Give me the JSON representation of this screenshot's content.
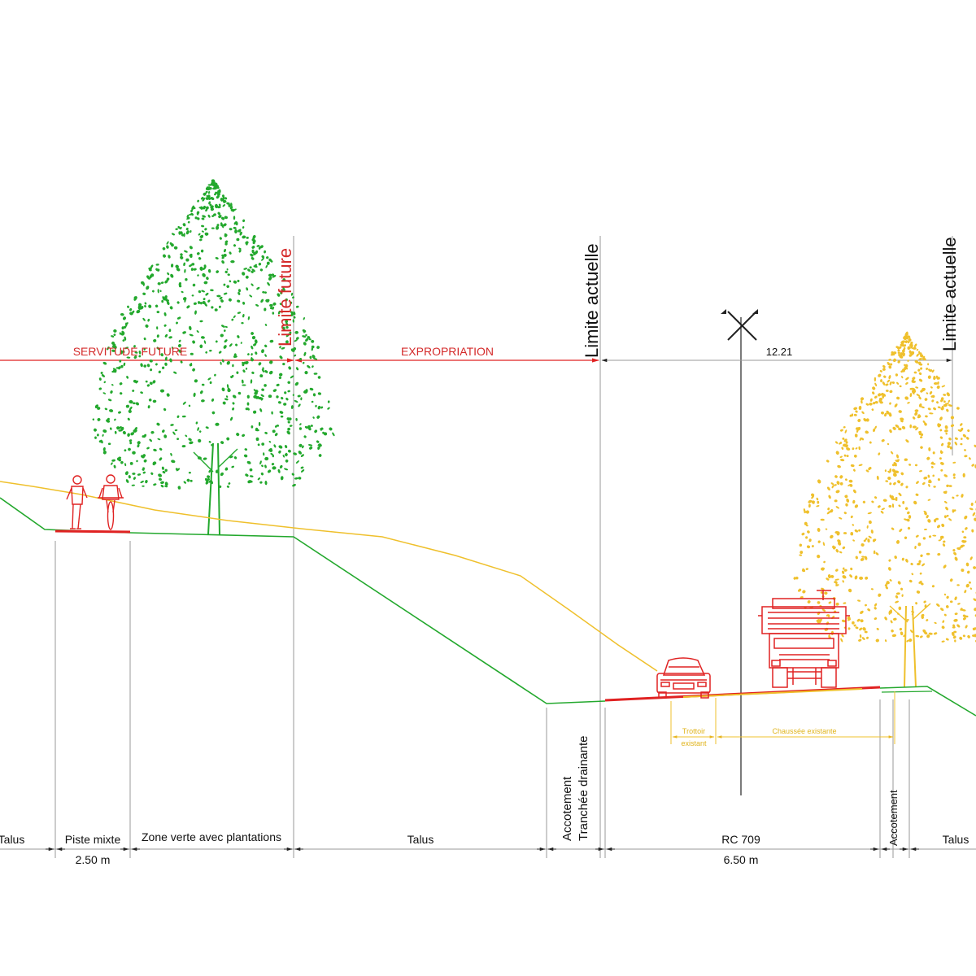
{
  "colors": {
    "ground": "#23a82d",
    "existing": "#efc02c",
    "future": "#e02222",
    "text": "#111111",
    "guide": "#9a9a9a"
  },
  "top_labels": {
    "servitude": "SERVITUDE FUTURE",
    "expropriation": "EXPROPRIATION",
    "limite_future": "Limite future",
    "limite_actuelle_1": "Limite actuelle",
    "limite_actuelle_2": "Limite actuelle",
    "dim_right": "12.21"
  },
  "existing_labels": {
    "trottoir_1": "Trottoir",
    "trottoir_2": "existant",
    "chaussee": "Chaussée existante"
  },
  "vertical_labels": {
    "accotement_1": "Accotement",
    "tranchee": "Tranchée drainante",
    "accotement_2": "Accotement"
  },
  "zones": [
    {
      "label": "Talus",
      "dim": ""
    },
    {
      "label": "Piste mixte",
      "dim": "2.50 m"
    },
    {
      "label": "Zone verte avec plantations",
      "dim": ""
    },
    {
      "label": "Talus",
      "dim": ""
    },
    {
      "label": "RC 709",
      "dim": "6.50 m"
    },
    {
      "label": "Talus",
      "dim": ""
    }
  ],
  "icons": [
    "pedestrian-icon",
    "cyclist-icon",
    "green-tree-icon",
    "yellow-tree-icon",
    "car-icon",
    "truck-icon",
    "axis-marker-icon"
  ]
}
